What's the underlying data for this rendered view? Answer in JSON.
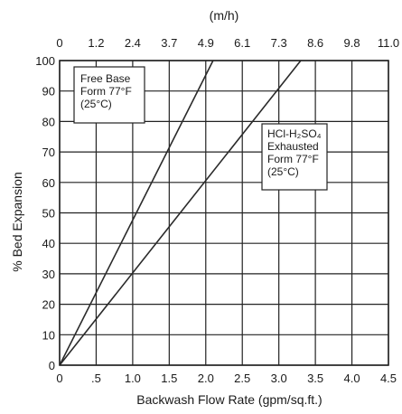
{
  "chart_data": {
    "type": "line",
    "title": "",
    "xlabel": "Backwash Flow Rate (gpm/sq.ft.)",
    "ylabel": "% Bed Expansion",
    "x2label": "(m/h)",
    "xlim": [
      0,
      4.5
    ],
    "ylim": [
      0,
      100
    ],
    "grid": true,
    "x_ticks": [
      {
        "value": 0,
        "label": "0"
      },
      {
        "value": 0.5,
        "label": ".5"
      },
      {
        "value": 1.0,
        "label": "1.0"
      },
      {
        "value": 1.5,
        "label": "1.5"
      },
      {
        "value": 2.0,
        "label": "2.0"
      },
      {
        "value": 2.5,
        "label": "2.5"
      },
      {
        "value": 3.0,
        "label": "3.0"
      },
      {
        "value": 3.5,
        "label": "3.5"
      },
      {
        "value": 4.0,
        "label": "4.0"
      },
      {
        "value": 4.5,
        "label": "4.5"
      }
    ],
    "x2_ticks": [
      "0",
      "1.2",
      "2.4",
      "3.7",
      "4.9",
      "6.1",
      "7.3",
      "8.6",
      "9.8",
      "11.0"
    ],
    "y_ticks": [
      0,
      10,
      20,
      30,
      40,
      50,
      60,
      70,
      80,
      90,
      100
    ],
    "series": [
      {
        "x": [
          0,
          2.1
        ],
        "y": [
          0,
          100
        ]
      },
      {
        "x": [
          0,
          3.3
        ],
        "y": [
          0,
          100
        ]
      }
    ],
    "annotations": [
      {
        "id": "free-base",
        "lines": [
          "Free Base",
          "Form 77°F",
          "(25°C)"
        ]
      },
      {
        "id": "exhausted",
        "lines": [
          "HCl-H₂SO₄",
          "Exhausted",
          "Form 77°F",
          "(25°C)"
        ]
      }
    ]
  }
}
